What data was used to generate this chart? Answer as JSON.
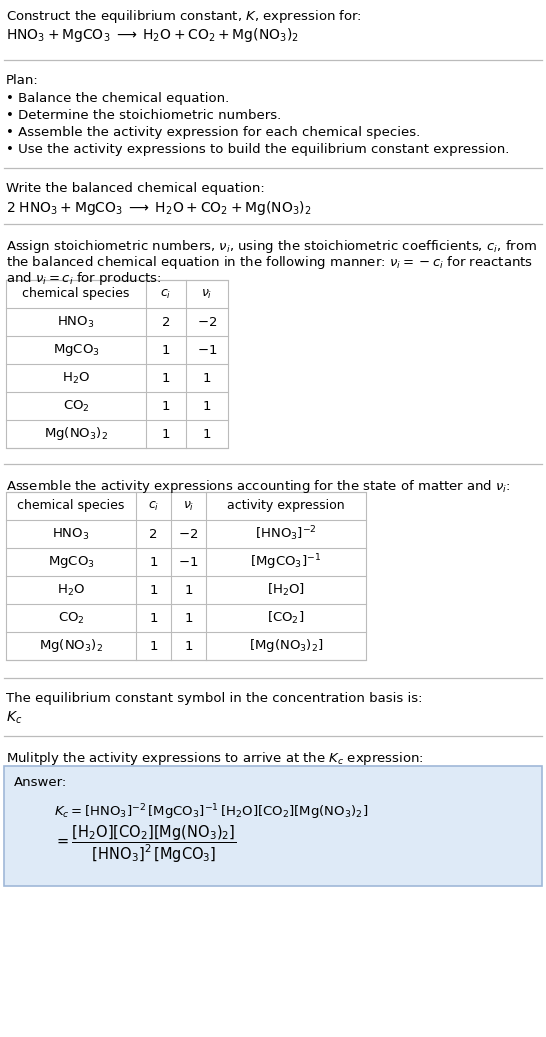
{
  "bg_color": "#ffffff",
  "text_color": "#000000",
  "gray_text": "#888888",
  "line_color": "#bbbbbb",
  "answer_box_color": "#deeaf7",
  "answer_border_color": "#a0b8d8",
  "figw": 5.46,
  "figh": 10.37,
  "dpi": 100,
  "section1": {
    "line1": "Construct the equilibrium constant, $K$, expression for:",
    "line2": "$\\mathrm{HNO_3 + MgCO_3 \\;\\longrightarrow\\; H_2O + CO_2 + Mg(NO_3)_2}$"
  },
  "section2": {
    "header": "Plan:",
    "items": [
      "\\textbullet\\; Balance the chemical equation.",
      "\\textbullet\\; Determine the stoichiometric numbers.",
      "\\textbullet\\; Assemble the activity expression for each chemical species.",
      "\\textbullet\\; Use the activity expressions to build the equilibrium constant expression."
    ]
  },
  "section3": {
    "header": "Write the balanced chemical equation:",
    "eq": "$\\mathrm{2\\; HNO_3 + MgCO_3 \\;\\longrightarrow\\; H_2O + CO_2 + Mg(NO_3)_2}$"
  },
  "section4": {
    "header1": "Assign stoichiometric numbers, $\\nu_i$, using the stoichiometric coefficients, $c_i$, from",
    "header2": "the balanced chemical equation in the following manner: $\\nu_i = -c_i$ for reactants",
    "header3": "and $\\nu_i = c_i$ for products:",
    "table_headers": [
      "chemical species",
      "$c_i$",
      "$\\nu_i$"
    ],
    "table_rows": [
      [
        "$\\mathrm{HNO_3}$",
        "2",
        "$-2$"
      ],
      [
        "$\\mathrm{MgCO_3}$",
        "1",
        "$-1$"
      ],
      [
        "$\\mathrm{H_2O}$",
        "1",
        "1"
      ],
      [
        "$\\mathrm{CO_2}$",
        "1",
        "1"
      ],
      [
        "$\\mathrm{Mg(NO_3)_2}$",
        "1",
        "1"
      ]
    ]
  },
  "section5": {
    "header": "Assemble the activity expressions accounting for the state of matter and $\\nu_i$:",
    "table_headers": [
      "chemical species",
      "$c_i$",
      "$\\nu_i$",
      "activity expression"
    ],
    "table_rows": [
      [
        "$\\mathrm{HNO_3}$",
        "2",
        "$-2$",
        "$[\\mathrm{HNO_3}]^{-2}$"
      ],
      [
        "$\\mathrm{MgCO_3}$",
        "1",
        "$-1$",
        "$[\\mathrm{MgCO_3}]^{-1}$"
      ],
      [
        "$\\mathrm{H_2O}$",
        "1",
        "1",
        "$[\\mathrm{H_2O}]$"
      ],
      [
        "$\\mathrm{CO_2}$",
        "1",
        "1",
        "$[\\mathrm{CO_2}]$"
      ],
      [
        "$\\mathrm{Mg(NO_3)_2}$",
        "1",
        "1",
        "$[\\mathrm{Mg(NO_3)_2}]$"
      ]
    ]
  },
  "section6": {
    "header": "The equilibrium constant symbol in the concentration basis is:",
    "symbol": "$K_c$"
  },
  "section7": {
    "header": "Mulitply the activity expressions to arrive at the $K_c$ expression:",
    "answer_label": "Answer:",
    "eq1": "$K_c = [\\mathrm{HNO_3}]^{-2}\\,[\\mathrm{MgCO_3}]^{-1}\\,[\\mathrm{H_2O}][\\mathrm{CO_2}][\\mathrm{Mg(NO_3)_2}]$",
    "eq2_lhs": "$= \\dfrac{[\\mathrm{H_2O}][\\mathrm{CO_2}][\\mathrm{Mg(NO_3)_2}]}{[\\mathrm{HNO_3}]^2\\,[\\mathrm{MgCO_3}]}$"
  }
}
